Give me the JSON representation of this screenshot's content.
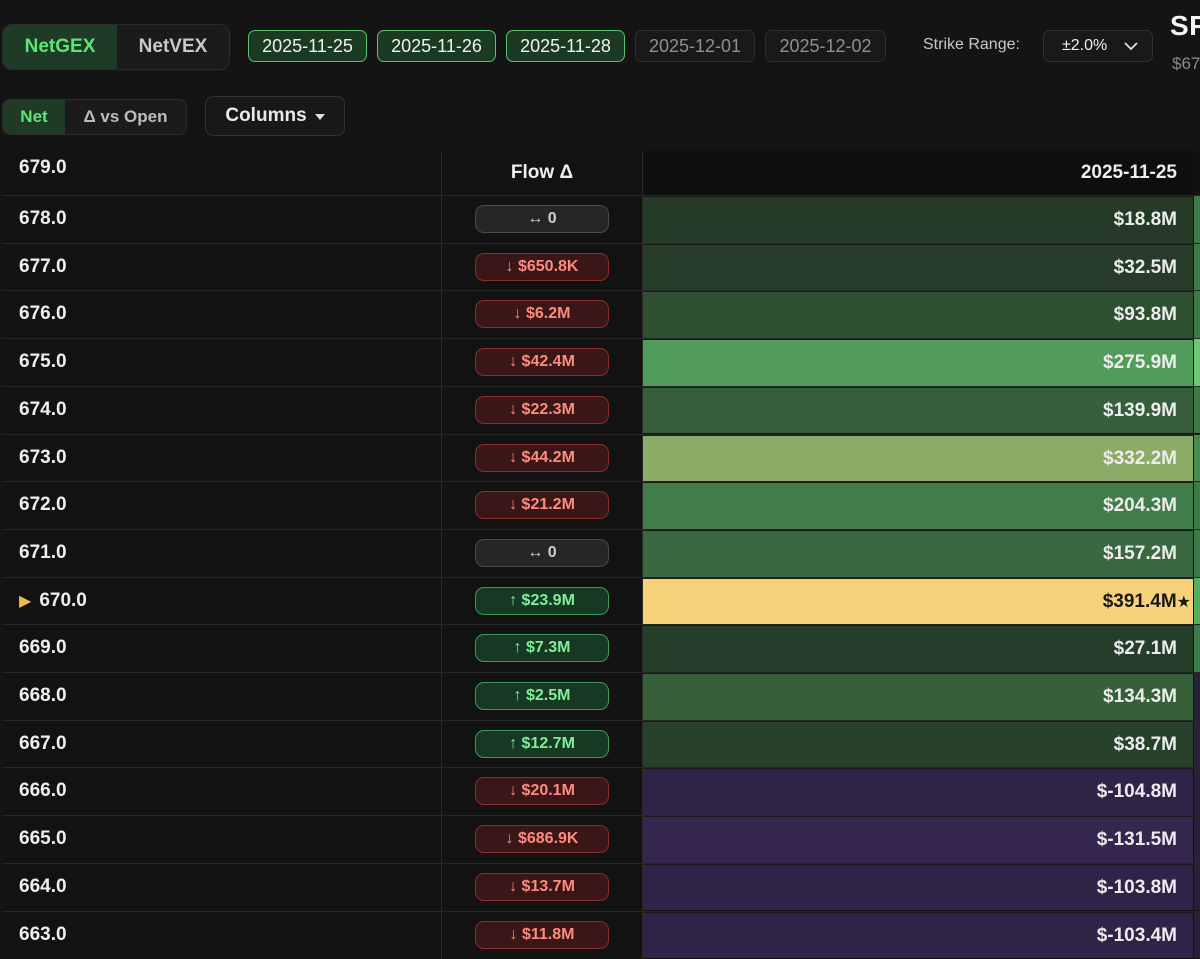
{
  "header": {
    "mode_tabs": [
      {
        "label": "NetGEX",
        "active": true
      },
      {
        "label": "NetVEX",
        "active": false
      }
    ],
    "expiries": [
      {
        "label": "2025-11-25",
        "selected": true
      },
      {
        "label": "2025-11-26",
        "selected": true
      },
      {
        "label": "2025-11-28",
        "selected": true
      },
      {
        "label": "2025-12-01",
        "selected": false
      },
      {
        "label": "2025-12-02",
        "selected": false
      }
    ],
    "strike_range_label": "Strike Range:",
    "strike_range_value": "±2.0%",
    "ticker": "SP",
    "ticker_price": "$67"
  },
  "toolbar": {
    "view_tabs": [
      {
        "label": "Net",
        "active": true
      },
      {
        "label": "Δ vs Open",
        "active": false
      }
    ],
    "columns_label": "Columns"
  },
  "table": {
    "first_strike": "679.0",
    "flow_header": "Flow Δ",
    "date_header": "2025-11-25",
    "current_marker": "▶",
    "star": "★",
    "colors": {
      "down": "#ff8a80",
      "up": "#7ef09a",
      "highlight": "#f8d27a"
    },
    "rows": [
      {
        "strike": "678.0",
        "flow": "↔ 0",
        "dir": "flat",
        "value": "$18.8M",
        "bg": "#253a27",
        "edge": "#3c7a48"
      },
      {
        "strike": "677.0",
        "flow": "↓ $650.8K",
        "dir": "down",
        "value": "$32.5M",
        "bg": "#273d29",
        "edge": "#3c7a48"
      },
      {
        "strike": "676.0",
        "flow": "↓ $6.2M",
        "dir": "down",
        "value": "$93.8M",
        "bg": "#2f4f33",
        "edge": "#3c7a48"
      },
      {
        "strike": "675.0",
        "flow": "↓ $42.4M",
        "dir": "down",
        "value": "$275.9M",
        "bg": "#519c5a",
        "edge": "#6ec779"
      },
      {
        "strike": "674.0",
        "flow": "↓ $22.3M",
        "dir": "down",
        "value": "$139.9M",
        "bg": "#365e3c",
        "edge": "#3c7a48"
      },
      {
        "strike": "673.0",
        "flow": "↓ $44.2M",
        "dir": "down",
        "value": "$332.2M",
        "bg": "#8bab66",
        "edge": "#4a8a52"
      },
      {
        "strike": "672.0",
        "flow": "↓ $21.2M",
        "dir": "down",
        "value": "$204.3M",
        "bg": "#417d4a",
        "edge": "#3c7a48"
      },
      {
        "strike": "671.0",
        "flow": "↔ 0",
        "dir": "flat",
        "value": "$157.2M",
        "bg": "#386740",
        "edge": "#3c7a48"
      },
      {
        "strike": "670.0",
        "flow": "↑ $23.9M",
        "dir": "up",
        "value": "$391.4M",
        "bg": "#f8d27a",
        "edge": "#55b063",
        "current": true
      },
      {
        "strike": "669.0",
        "flow": "↑ $7.3M",
        "dir": "up",
        "value": "$27.1M",
        "bg": "#263d2a",
        "edge": "#3c7a48"
      },
      {
        "strike": "668.0",
        "flow": "↑ $2.5M",
        "dir": "up",
        "value": "$134.3M",
        "bg": "#366039",
        "edge": "#2a2138"
      },
      {
        "strike": "667.0",
        "flow": "↑ $12.7M",
        "dir": "up",
        "value": "$38.7M",
        "bg": "#27412b",
        "edge": "#2a2138"
      },
      {
        "strike": "666.0",
        "flow": "↓ $20.1M",
        "dir": "down",
        "value": "$-104.8M",
        "bg": "#2f2347",
        "edge": "#2a2138"
      },
      {
        "strike": "665.0",
        "flow": "↓ $686.9K",
        "dir": "down",
        "value": "$-131.5M",
        "bg": "#34264f",
        "edge": "#2a2138"
      },
      {
        "strike": "664.0",
        "flow": "↓ $13.7M",
        "dir": "down",
        "value": "$-103.8M",
        "bg": "#2f2347",
        "edge": "#2a2138"
      },
      {
        "strike": "663.0",
        "flow": "↓ $11.8M",
        "dir": "down",
        "value": "$-103.4M",
        "bg": "#2f2347",
        "edge": "#2a2138"
      }
    ]
  }
}
